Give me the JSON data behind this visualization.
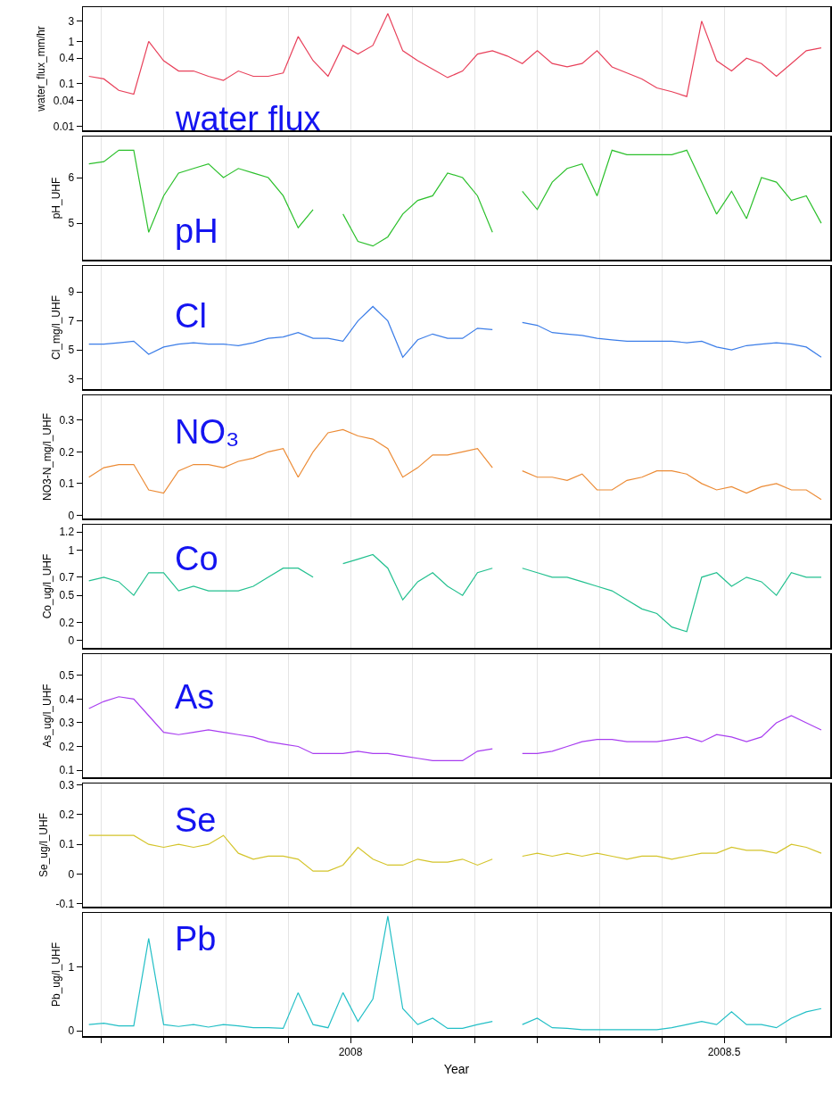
{
  "chart_data": [
    {
      "type": "line",
      "ylabel": "water_flux_mm/hr",
      "annotations": [
        "water flux"
      ],
      "log": true,
      "grid": "x",
      "tick_labels": "y",
      "color": "#e8405a",
      "xlim": [
        2007.642,
        2008.642
      ],
      "xticks": [
        {
          "value": 2007.6667,
          "label": null
        },
        {
          "value": 2007.75,
          "label": null
        },
        {
          "value": 2007.8333,
          "label": null
        },
        {
          "value": 2007.9167,
          "label": null
        },
        {
          "value": 2008,
          "label": null
        },
        {
          "value": 2008.0833,
          "label": null
        },
        {
          "value": 2008.1667,
          "label": null
        },
        {
          "value": 2008.25,
          "label": null
        },
        {
          "value": 2008.3333,
          "label": null
        },
        {
          "value": 2008.4167,
          "label": null
        },
        {
          "value": 2008.5,
          "label": null
        },
        {
          "value": 2008.5833,
          "label": null
        }
      ],
      "ylim": [
        0.008,
        6.4
      ],
      "yticks": [
        0.01,
        0.04,
        0.1,
        0.4,
        1,
        3
      ],
      "x": [
        2007.65,
        2007.67,
        2007.69,
        2007.71,
        2007.73,
        2007.75,
        2007.77,
        2007.79,
        2007.81,
        2007.83,
        2007.85,
        2007.87,
        2007.89,
        2007.91,
        2007.93,
        2007.95,
        2007.97,
        2007.99,
        2008.01,
        2008.03,
        2008.05,
        2008.07,
        2008.09,
        2008.11,
        2008.13,
        2008.15,
        2008.17,
        2008.19,
        2008.21,
        2008.23,
        2008.25,
        2008.27,
        2008.29,
        2008.31,
        2008.33,
        2008.35,
        2008.37,
        2008.39,
        2008.41,
        2008.43,
        2008.45,
        2008.47,
        2008.49,
        2008.51,
        2008.53,
        2008.55,
        2008.57,
        2008.59,
        2008.61,
        2008.63
      ],
      "values": [
        0.15,
        0.13,
        0.07,
        0.057,
        1.0,
        0.35,
        0.2,
        0.2,
        0.15,
        0.12,
        0.2,
        0.15,
        0.15,
        0.18,
        1.3,
        0.35,
        0.15,
        0.8,
        0.5,
        0.8,
        4.5,
        0.6,
        0.35,
        0.22,
        0.14,
        0.2,
        0.5,
        0.6,
        0.45,
        0.3,
        0.6,
        0.3,
        0.25,
        0.3,
        0.6,
        0.25,
        0.18,
        0.13,
        0.08,
        0.065,
        0.05,
        3.0,
        0.35,
        0.2,
        0.4,
        0.3,
        0.15,
        0.3,
        0.6,
        0.7
      ]
    },
    {
      "type": "line",
      "ylabel": "pH_UHF",
      "annotations": [
        "pH"
      ],
      "grid": "x",
      "tick_labels": "y",
      "color": "#2cc02c",
      "xlim": [
        2007.642,
        2008.642
      ],
      "xticks": [
        {
          "value": 2007.6667,
          "label": null
        },
        {
          "value": 2007.75,
          "label": null
        },
        {
          "value": 2007.8333,
          "label": null
        },
        {
          "value": 2007.9167,
          "label": null
        },
        {
          "value": 2008,
          "label": null
        },
        {
          "value": 2008.0833,
          "label": null
        },
        {
          "value": 2008.1667,
          "label": null
        },
        {
          "value": 2008.25,
          "label": null
        },
        {
          "value": 2008.3333,
          "label": null
        },
        {
          "value": 2008.4167,
          "label": null
        },
        {
          "value": 2008.5,
          "label": null
        },
        {
          "value": 2008.5833,
          "label": null
        }
      ],
      "ylim": [
        4.2,
        6.9
      ],
      "yticks": [
        5,
        6
      ],
      "x": [
        2007.65,
        2007.67,
        2007.69,
        2007.71,
        2007.73,
        2007.75,
        2007.77,
        2007.79,
        2007.81,
        2007.83,
        2007.85,
        2007.87,
        2007.89,
        2007.91,
        2007.93,
        2007.95,
        2007.97,
        2007.99,
        2008.01,
        2008.03,
        2008.05,
        2008.07,
        2008.09,
        2008.11,
        2008.13,
        2008.15,
        2008.17,
        2008.19,
        2008.21,
        2008.23,
        2008.25,
        2008.27,
        2008.29,
        2008.31,
        2008.33,
        2008.35,
        2008.37,
        2008.39,
        2008.41,
        2008.43,
        2008.45,
        2008.47,
        2008.49,
        2008.51,
        2008.53,
        2008.55,
        2008.57,
        2008.59,
        2008.61,
        2008.63
      ],
      "values": [
        6.3,
        6.35,
        6.6,
        6.6,
        4.8,
        5.6,
        6.1,
        6.2,
        6.3,
        6.0,
        6.2,
        6.1,
        6.0,
        5.6,
        4.9,
        5.3,
        null,
        5.2,
        4.6,
        4.5,
        4.7,
        5.2,
        5.5,
        5.6,
        6.1,
        6.0,
        5.6,
        4.8,
        null,
        5.7,
        5.3,
        5.9,
        6.2,
        6.3,
        5.6,
        6.6,
        6.5,
        6.5,
        6.5,
        6.5,
        6.6,
        5.9,
        5.2,
        5.7,
        5.1,
        6.0,
        5.9,
        5.5,
        5.6,
        5.0
      ]
    },
    {
      "type": "line",
      "ylabel": "Cl_mg/l_UHF",
      "annotations": [
        "Cl"
      ],
      "grid": "x",
      "tick_labels": "y",
      "color": "#3b7de8",
      "xlim": [
        2007.642,
        2008.642
      ],
      "xticks": [
        {
          "value": 2007.6667,
          "label": null
        },
        {
          "value": 2007.75,
          "label": null
        },
        {
          "value": 2007.8333,
          "label": null
        },
        {
          "value": 2007.9167,
          "label": null
        },
        {
          "value": 2008,
          "label": null
        },
        {
          "value": 2008.0833,
          "label": null
        },
        {
          "value": 2008.1667,
          "label": null
        },
        {
          "value": 2008.25,
          "label": null
        },
        {
          "value": 2008.3333,
          "label": null
        },
        {
          "value": 2008.4167,
          "label": null
        },
        {
          "value": 2008.5,
          "label": null
        },
        {
          "value": 2008.5833,
          "label": null
        }
      ],
      "ylim": [
        2.3,
        10.8
      ],
      "yticks": [
        3,
        5,
        7,
        9
      ],
      "x": [
        2007.65,
        2007.67,
        2007.69,
        2007.71,
        2007.73,
        2007.75,
        2007.77,
        2007.79,
        2007.81,
        2007.83,
        2007.85,
        2007.87,
        2007.89,
        2007.91,
        2007.93,
        2007.95,
        2007.97,
        2007.99,
        2008.01,
        2008.03,
        2008.05,
        2008.07,
        2008.09,
        2008.11,
        2008.13,
        2008.15,
        2008.17,
        2008.19,
        2008.21,
        2008.23,
        2008.25,
        2008.27,
        2008.29,
        2008.31,
        2008.33,
        2008.35,
        2008.37,
        2008.39,
        2008.41,
        2008.43,
        2008.45,
        2008.47,
        2008.49,
        2008.51,
        2008.53,
        2008.55,
        2008.57,
        2008.59,
        2008.61,
        2008.63
      ],
      "values": [
        5.4,
        5.4,
        5.5,
        5.6,
        4.7,
        5.2,
        5.4,
        5.5,
        5.4,
        5.4,
        5.3,
        5.5,
        5.8,
        5.9,
        6.2,
        5.8,
        5.8,
        5.6,
        7.0,
        8.0,
        7.0,
        4.5,
        5.7,
        6.1,
        5.8,
        5.8,
        6.5,
        6.4,
        null,
        6.9,
        6.7,
        6.2,
        6.1,
        6.0,
        5.8,
        5.7,
        5.6,
        5.6,
        5.6,
        5.6,
        5.5,
        5.6,
        5.2,
        5.0,
        5.3,
        5.4,
        5.5,
        5.4,
        5.2,
        4.5
      ]
    },
    {
      "type": "line",
      "ylabel": "NO3-N_mg/l_UHF",
      "annotations": [
        "NO₃"
      ],
      "grid": "x",
      "tick_labels": "y",
      "color": "#ec8b35",
      "xlim": [
        2007.642,
        2008.642
      ],
      "xticks": [
        {
          "value": 2007.6667,
          "label": null
        },
        {
          "value": 2007.75,
          "label": null
        },
        {
          "value": 2007.8333,
          "label": null
        },
        {
          "value": 2007.9167,
          "label": null
        },
        {
          "value": 2008,
          "label": null
        },
        {
          "value": 2008.0833,
          "label": null
        },
        {
          "value": 2008.1667,
          "label": null
        },
        {
          "value": 2008.25,
          "label": null
        },
        {
          "value": 2008.3333,
          "label": null
        },
        {
          "value": 2008.4167,
          "label": null
        },
        {
          "value": 2008.5,
          "label": null
        },
        {
          "value": 2008.5833,
          "label": null
        }
      ],
      "ylim": [
        -0.01,
        0.378
      ],
      "yticks": [
        0,
        0.1,
        0.2,
        0.3
      ],
      "x": [
        2007.65,
        2007.67,
        2007.69,
        2007.71,
        2007.73,
        2007.75,
        2007.77,
        2007.79,
        2007.81,
        2007.83,
        2007.85,
        2007.87,
        2007.89,
        2007.91,
        2007.93,
        2007.95,
        2007.97,
        2007.99,
        2008.01,
        2008.03,
        2008.05,
        2008.07,
        2008.09,
        2008.11,
        2008.13,
        2008.15,
        2008.17,
        2008.19,
        2008.21,
        2008.23,
        2008.25,
        2008.27,
        2008.29,
        2008.31,
        2008.33,
        2008.35,
        2008.37,
        2008.39,
        2008.41,
        2008.43,
        2008.45,
        2008.47,
        2008.49,
        2008.51,
        2008.53,
        2008.55,
        2008.57,
        2008.59,
        2008.61,
        2008.63
      ],
      "values": [
        0.12,
        0.15,
        0.16,
        0.16,
        0.08,
        0.07,
        0.14,
        0.16,
        0.16,
        0.15,
        0.17,
        0.18,
        0.2,
        0.21,
        0.12,
        0.2,
        0.26,
        0.27,
        0.25,
        0.24,
        0.21,
        0.12,
        0.15,
        0.19,
        0.19,
        0.2,
        0.21,
        0.15,
        null,
        0.14,
        0.12,
        0.12,
        0.11,
        0.13,
        0.08,
        0.08,
        0.11,
        0.12,
        0.14,
        0.14,
        0.13,
        0.1,
        0.08,
        0.09,
        0.07,
        0.09,
        0.1,
        0.08,
        0.08,
        0.05
      ]
    },
    {
      "type": "line",
      "ylabel": "Co_ug/l_UHF",
      "annotations": [
        "Co"
      ],
      "grid": "x",
      "tick_labels": "y",
      "color": "#22c08f",
      "xlim": [
        2007.642,
        2008.642
      ],
      "xticks": [
        {
          "value": 2007.6667,
          "label": null
        },
        {
          "value": 2007.75,
          "label": null
        },
        {
          "value": 2007.8333,
          "label": null
        },
        {
          "value": 2007.9167,
          "label": null
        },
        {
          "value": 2008,
          "label": null
        },
        {
          "value": 2008.0833,
          "label": null
        },
        {
          "value": 2008.1667,
          "label": null
        },
        {
          "value": 2008.25,
          "label": null
        },
        {
          "value": 2008.3333,
          "label": null
        },
        {
          "value": 2008.4167,
          "label": null
        },
        {
          "value": 2008.5,
          "label": null
        },
        {
          "value": 2008.5833,
          "label": null
        }
      ],
      "ylim": [
        -0.08,
        1.28
      ],
      "yticks": [
        0,
        0.2,
        0.5,
        0.7,
        1,
        1.2
      ],
      "x": [
        2007.65,
        2007.67,
        2007.69,
        2007.71,
        2007.73,
        2007.75,
        2007.77,
        2007.79,
        2007.81,
        2007.83,
        2007.85,
        2007.87,
        2007.89,
        2007.91,
        2007.93,
        2007.95,
        2007.97,
        2007.99,
        2008.01,
        2008.03,
        2008.05,
        2008.07,
        2008.09,
        2008.11,
        2008.13,
        2008.15,
        2008.17,
        2008.19,
        2008.21,
        2008.23,
        2008.25,
        2008.27,
        2008.29,
        2008.31,
        2008.33,
        2008.35,
        2008.37,
        2008.39,
        2008.41,
        2008.43,
        2008.45,
        2008.47,
        2008.49,
        2008.51,
        2008.53,
        2008.55,
        2008.57,
        2008.59,
        2008.61,
        2008.63
      ],
      "values": [
        0.66,
        0.7,
        0.65,
        0.5,
        0.75,
        0.75,
        0.55,
        0.6,
        0.55,
        0.55,
        0.55,
        0.6,
        0.7,
        0.8,
        0.8,
        0.7,
        null,
        0.85,
        0.9,
        0.95,
        0.8,
        0.45,
        0.65,
        0.75,
        0.6,
        0.5,
        0.75,
        0.8,
        null,
        0.8,
        0.75,
        0.7,
        0.7,
        0.65,
        0.6,
        0.55,
        0.45,
        0.35,
        0.3,
        0.15,
        0.1,
        0.7,
        0.75,
        0.6,
        0.7,
        0.65,
        0.5,
        0.75,
        0.7,
        0.7
      ]
    },
    {
      "type": "line",
      "ylabel": "As_ug/l_UHF",
      "annotations": [
        "As"
      ],
      "grid": "x",
      "tick_labels": "y",
      "color": "#a83df0",
      "xlim": [
        2007.642,
        2008.642
      ],
      "xticks": [
        {
          "value": 2007.6667,
          "label": null
        },
        {
          "value": 2007.75,
          "label": null
        },
        {
          "value": 2007.8333,
          "label": null
        },
        {
          "value": 2007.9167,
          "label": null
        },
        {
          "value": 2008,
          "label": null
        },
        {
          "value": 2008.0833,
          "label": null
        },
        {
          "value": 2008.1667,
          "label": null
        },
        {
          "value": 2008.25,
          "label": null
        },
        {
          "value": 2008.3333,
          "label": null
        },
        {
          "value": 2008.4167,
          "label": null
        },
        {
          "value": 2008.5,
          "label": null
        },
        {
          "value": 2008.5833,
          "label": null
        }
      ],
      "ylim": [
        0.07,
        0.59
      ],
      "yticks": [
        0.1,
        0.2,
        0.3,
        0.4,
        0.5
      ],
      "x": [
        2007.65,
        2007.67,
        2007.69,
        2007.71,
        2007.73,
        2007.75,
        2007.77,
        2007.79,
        2007.81,
        2007.83,
        2007.85,
        2007.87,
        2007.89,
        2007.91,
        2007.93,
        2007.95,
        2007.97,
        2007.99,
        2008.01,
        2008.03,
        2008.05,
        2008.07,
        2008.09,
        2008.11,
        2008.13,
        2008.15,
        2008.17,
        2008.19,
        2008.21,
        2008.23,
        2008.25,
        2008.27,
        2008.29,
        2008.31,
        2008.33,
        2008.35,
        2008.37,
        2008.39,
        2008.41,
        2008.43,
        2008.45,
        2008.47,
        2008.49,
        2008.51,
        2008.53,
        2008.55,
        2008.57,
        2008.59,
        2008.61,
        2008.63
      ],
      "values": [
        0.36,
        0.39,
        0.41,
        0.4,
        0.33,
        0.26,
        0.25,
        0.26,
        0.27,
        0.26,
        0.25,
        0.24,
        0.22,
        0.21,
        0.2,
        0.17,
        0.17,
        0.17,
        0.18,
        0.17,
        0.17,
        0.16,
        0.15,
        0.14,
        0.14,
        0.14,
        0.18,
        0.19,
        null,
        0.17,
        0.17,
        0.18,
        0.2,
        0.22,
        0.23,
        0.23,
        0.22,
        0.22,
        0.22,
        0.23,
        0.24,
        0.22,
        0.25,
        0.24,
        0.22,
        0.24,
        0.3,
        0.33,
        0.3,
        0.27
      ]
    },
    {
      "type": "line",
      "ylabel": "Se_ug/l_UHF",
      "annotations": [
        "Se"
      ],
      "grid": "x",
      "tick_labels": "y",
      "color": "#d4c42a",
      "xlim": [
        2007.642,
        2008.642
      ],
      "xticks": [
        {
          "value": 2007.6667,
          "label": null
        },
        {
          "value": 2007.75,
          "label": null
        },
        {
          "value": 2007.8333,
          "label": null
        },
        {
          "value": 2007.9167,
          "label": null
        },
        {
          "value": 2008,
          "label": null
        },
        {
          "value": 2008.0833,
          "label": null
        },
        {
          "value": 2008.1667,
          "label": null
        },
        {
          "value": 2008.25,
          "label": null
        },
        {
          "value": 2008.3333,
          "label": null
        },
        {
          "value": 2008.4167,
          "label": null
        },
        {
          "value": 2008.5,
          "label": null
        },
        {
          "value": 2008.5833,
          "label": null
        }
      ],
      "ylim": [
        -0.11,
        0.305
      ],
      "yticks": [
        -0.1,
        0,
        0.1,
        0.2,
        0.3
      ],
      "x": [
        2007.65,
        2007.67,
        2007.69,
        2007.71,
        2007.73,
        2007.75,
        2007.77,
        2007.79,
        2007.81,
        2007.83,
        2007.85,
        2007.87,
        2007.89,
        2007.91,
        2007.93,
        2007.95,
        2007.97,
        2007.99,
        2008.01,
        2008.03,
        2008.05,
        2008.07,
        2008.09,
        2008.11,
        2008.13,
        2008.15,
        2008.17,
        2008.19,
        2008.21,
        2008.23,
        2008.25,
        2008.27,
        2008.29,
        2008.31,
        2008.33,
        2008.35,
        2008.37,
        2008.39,
        2008.41,
        2008.43,
        2008.45,
        2008.47,
        2008.49,
        2008.51,
        2008.53,
        2008.55,
        2008.57,
        2008.59,
        2008.61,
        2008.63
      ],
      "values": [
        0.13,
        0.13,
        0.13,
        0.13,
        0.1,
        0.09,
        0.1,
        0.09,
        0.1,
        0.13,
        0.07,
        0.05,
        0.06,
        0.06,
        0.05,
        0.01,
        0.01,
        0.03,
        0.09,
        0.05,
        0.03,
        0.03,
        0.05,
        0.04,
        0.04,
        0.05,
        0.03,
        0.05,
        null,
        0.06,
        0.07,
        0.06,
        0.07,
        0.06,
        0.07,
        0.06,
        0.05,
        0.06,
        0.06,
        0.05,
        0.06,
        0.07,
        0.07,
        0.09,
        0.08,
        0.08,
        0.07,
        0.1,
        0.09,
        0.07
      ]
    },
    {
      "type": "line",
      "ylabel": "Pb_ug/l_UHF",
      "xlabel": "Year",
      "annotations": [
        "Pb"
      ],
      "grid": "x",
      "color": "#22bfc6",
      "xlim": [
        2007.642,
        2008.642
      ],
      "xticks": [
        {
          "value": 2007.6667,
          "label": null
        },
        {
          "value": 2007.75,
          "label": null
        },
        {
          "value": 2007.8333,
          "label": null
        },
        {
          "value": 2007.9167,
          "label": null
        },
        2008,
        {
          "value": 2008.0833,
          "label": null
        },
        {
          "value": 2008.1667,
          "label": null
        },
        {
          "value": 2008.25,
          "label": null
        },
        {
          "value": 2008.3333,
          "label": null
        },
        {
          "value": 2008.4167,
          "label": null
        },
        2008.5,
        {
          "value": 2008.5833,
          "label": null
        }
      ],
      "ylim": [
        -0.08,
        1.85
      ],
      "yticks": [
        0,
        1
      ],
      "x": [
        2007.65,
        2007.67,
        2007.69,
        2007.71,
        2007.73,
        2007.75,
        2007.77,
        2007.79,
        2007.81,
        2007.83,
        2007.85,
        2007.87,
        2007.89,
        2007.91,
        2007.93,
        2007.95,
        2007.97,
        2007.99,
        2008.01,
        2008.03,
        2008.05,
        2008.07,
        2008.09,
        2008.11,
        2008.13,
        2008.15,
        2008.17,
        2008.19,
        2008.21,
        2008.23,
        2008.25,
        2008.27,
        2008.29,
        2008.31,
        2008.33,
        2008.35,
        2008.37,
        2008.39,
        2008.41,
        2008.43,
        2008.45,
        2008.47,
        2008.49,
        2008.51,
        2008.53,
        2008.55,
        2008.57,
        2008.59,
        2008.61,
        2008.63
      ],
      "values": [
        0.1,
        0.12,
        0.08,
        0.08,
        1.45,
        0.1,
        0.07,
        0.1,
        0.06,
        0.1,
        0.08,
        0.05,
        0.05,
        0.04,
        0.6,
        0.1,
        0.05,
        0.6,
        0.15,
        0.5,
        1.8,
        0.35,
        0.1,
        0.2,
        0.04,
        0.04,
        0.1,
        0.15,
        null,
        0.1,
        0.2,
        0.05,
        0.04,
        0.02,
        0.02,
        0.02,
        0.02,
        0.02,
        0.02,
        0.05,
        0.1,
        0.15,
        0.1,
        0.3,
        0.1,
        0.1,
        0.05,
        0.2,
        0.3,
        0.35
      ]
    }
  ]
}
